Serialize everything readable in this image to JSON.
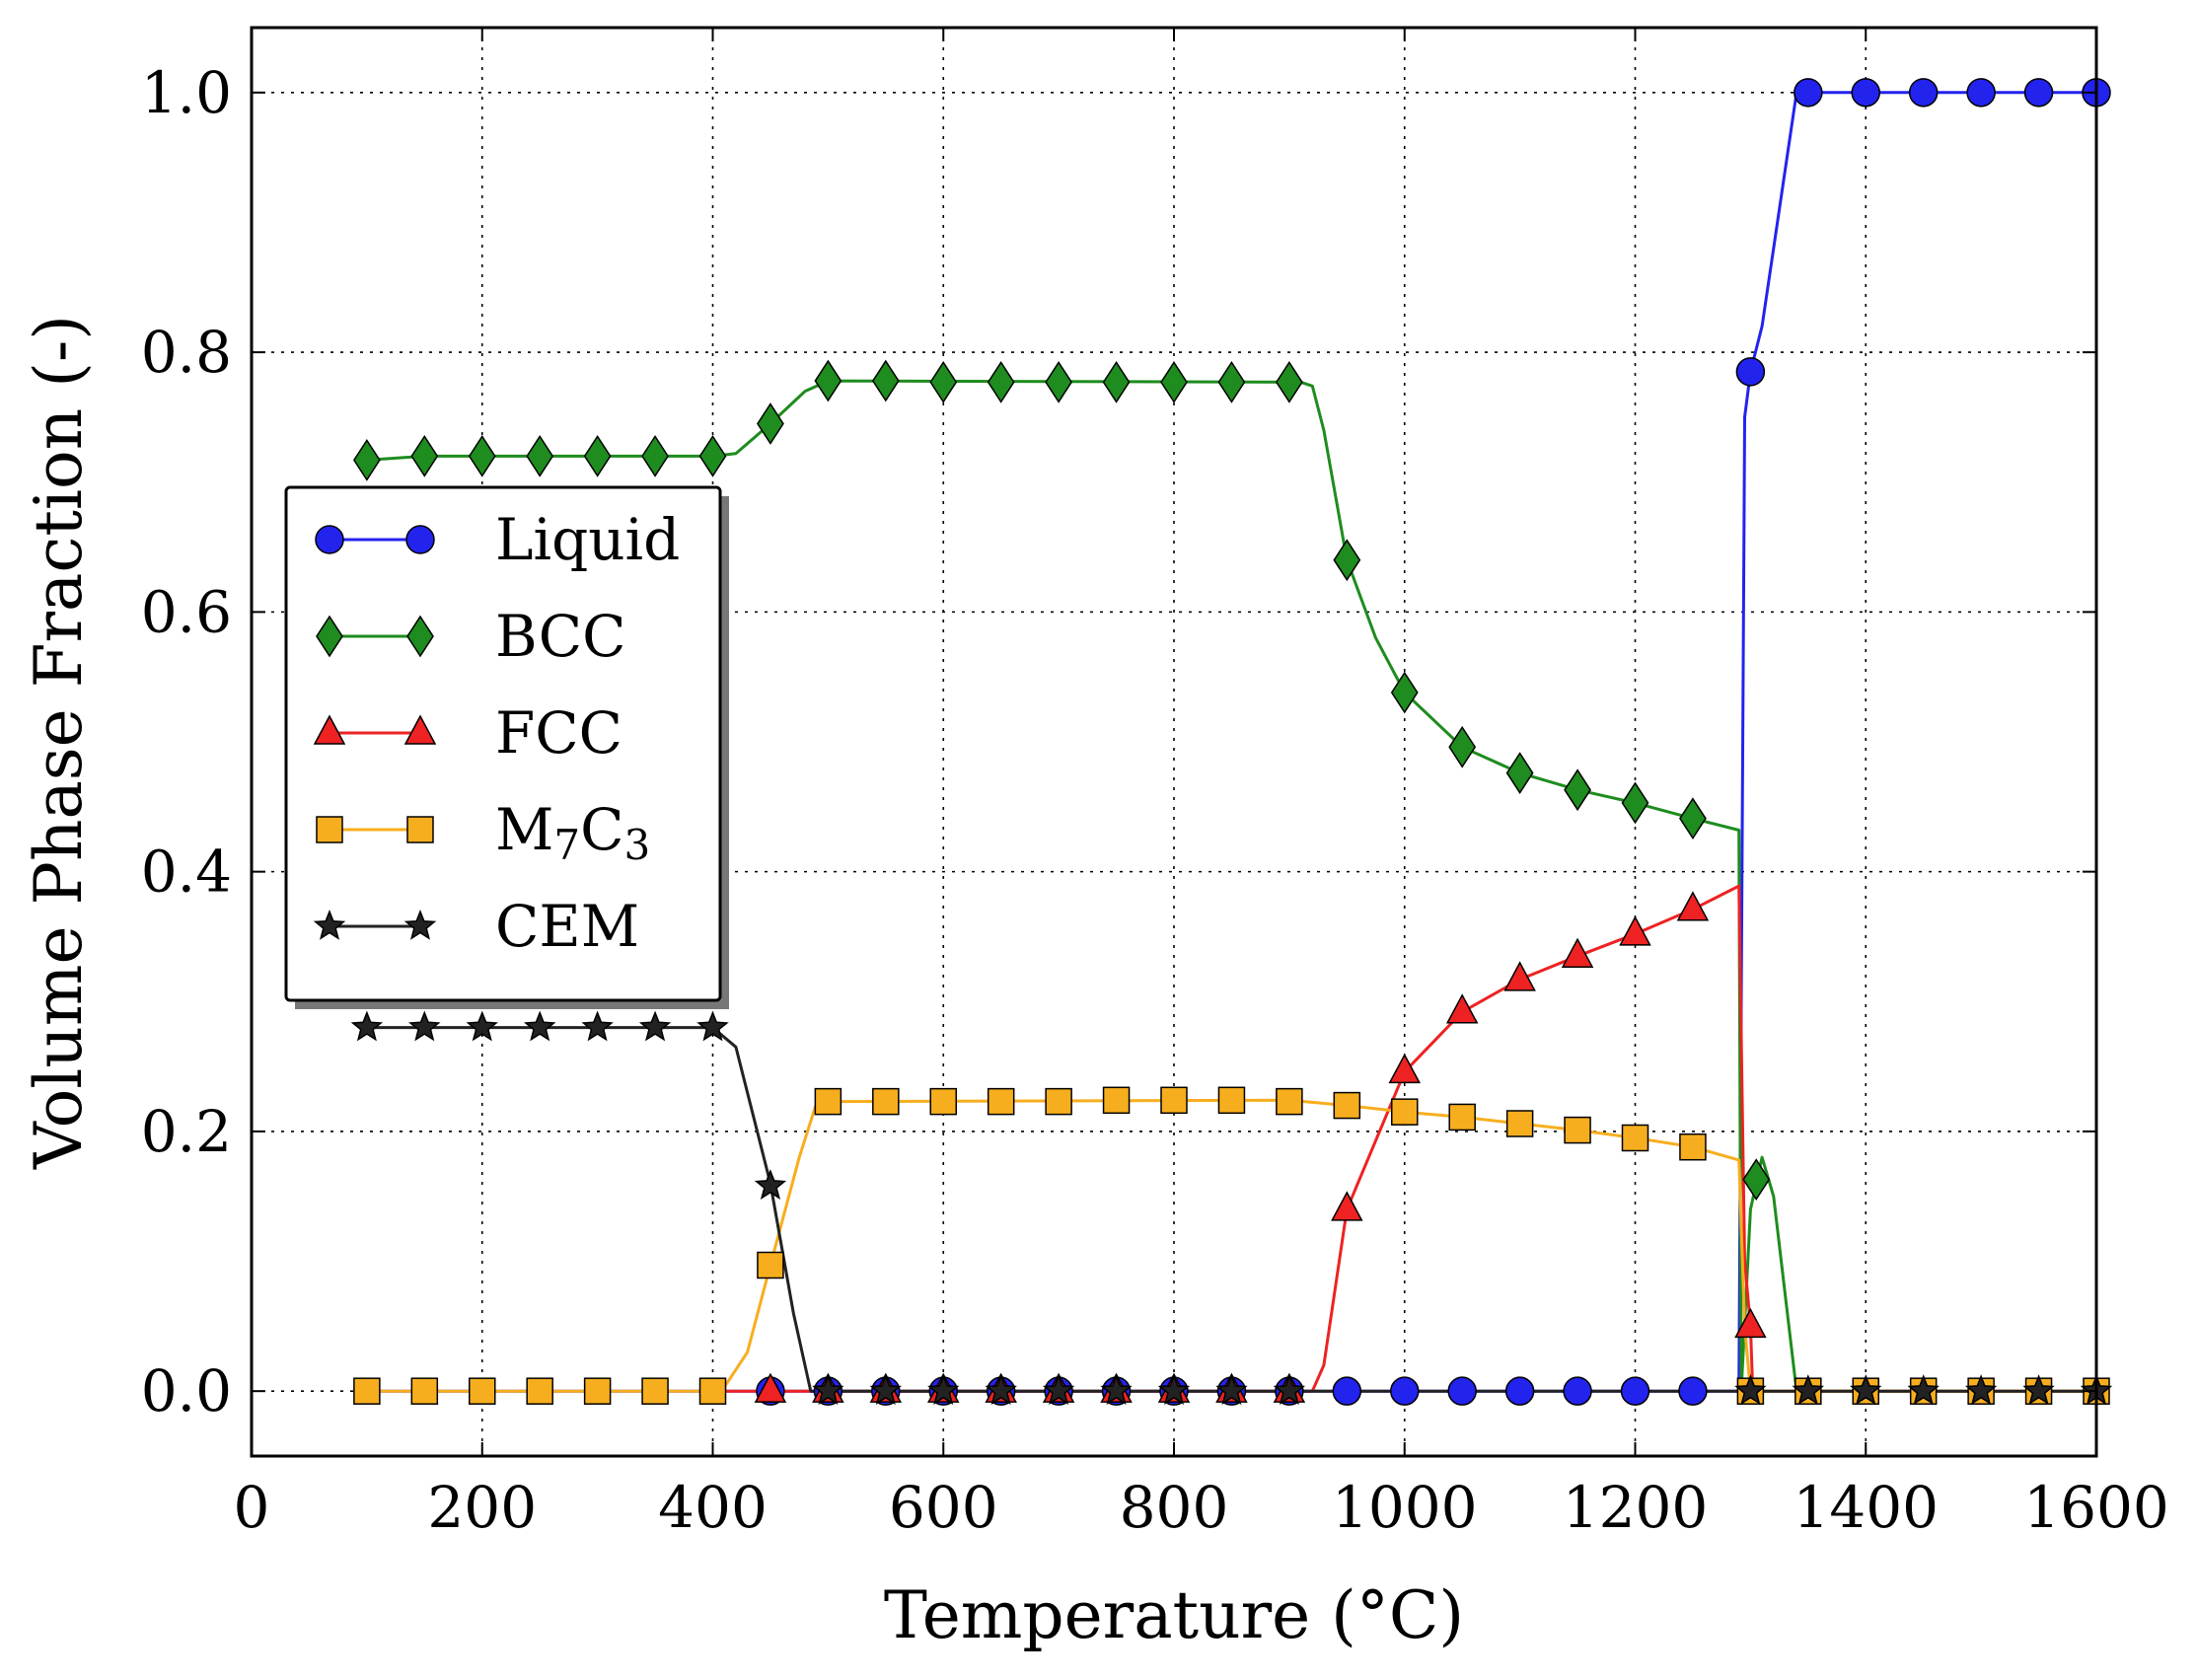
{
  "chart_data": {
    "type": "line",
    "title": "",
    "xlabel": "Temperature (°C)",
    "ylabel": "Volume Phase Fraction (-)",
    "xlim": [
      0,
      1600
    ],
    "ylim": [
      -0.05,
      1.05
    ],
    "xticks": [
      0,
      200,
      400,
      600,
      800,
      1000,
      1200,
      1400,
      1600
    ],
    "yticks": [
      0.0,
      0.2,
      0.4,
      0.6,
      0.8,
      1.0
    ],
    "xtick_labels": [
      "0",
      "200",
      "400",
      "600",
      "800",
      "1000",
      "1200",
      "1400",
      "1600"
    ],
    "ytick_labels": [
      "0.0",
      "0.2",
      "0.4",
      "0.6",
      "0.8",
      "1.0"
    ],
    "grid": true,
    "legend_position": "center-left",
    "series": [
      {
        "name": "Liquid",
        "color": "#2323ee",
        "marker": "circle",
        "line": [
          [
            100,
            0
          ],
          [
            1290,
            0
          ],
          [
            1295,
            0.75
          ],
          [
            1300,
            0.785
          ],
          [
            1310,
            0.82
          ],
          [
            1320,
            0.88
          ],
          [
            1340,
            1.0
          ],
          [
            1600,
            1.0
          ]
        ],
        "markers": [
          [
            450,
            0
          ],
          [
            500,
            0
          ],
          [
            550,
            0
          ],
          [
            600,
            0
          ],
          [
            650,
            0
          ],
          [
            700,
            0
          ],
          [
            750,
            0
          ],
          [
            800,
            0
          ],
          [
            850,
            0
          ],
          [
            900,
            0
          ],
          [
            950,
            0
          ],
          [
            1000,
            0
          ],
          [
            1050,
            0
          ],
          [
            1100,
            0
          ],
          [
            1150,
            0
          ],
          [
            1200,
            0
          ],
          [
            1250,
            0
          ],
          [
            1300,
            0.785
          ],
          [
            1350,
            1.0
          ],
          [
            1400,
            1.0
          ],
          [
            1450,
            1.0
          ],
          [
            1500,
            1.0
          ],
          [
            1550,
            1.0
          ],
          [
            1600,
            1.0
          ]
        ]
      },
      {
        "name": "BCC",
        "color": "#1e8c1e",
        "marker": "diamond",
        "line": [
          [
            100,
            0.717
          ],
          [
            150,
            0.72
          ],
          [
            400,
            0.72
          ],
          [
            420,
            0.722
          ],
          [
            450,
            0.745
          ],
          [
            480,
            0.77
          ],
          [
            500,
            0.778
          ],
          [
            910,
            0.777
          ],
          [
            920,
            0.774
          ],
          [
            930,
            0.74
          ],
          [
            950,
            0.64
          ],
          [
            975,
            0.58
          ],
          [
            1000,
            0.538
          ],
          [
            1050,
            0.496
          ],
          [
            1100,
            0.476
          ],
          [
            1150,
            0.463
          ],
          [
            1200,
            0.453
          ],
          [
            1250,
            0.441
          ],
          [
            1290,
            0.432
          ],
          [
            1292,
            0.0
          ],
          [
            1300,
            0.14
          ],
          [
            1310,
            0.18
          ],
          [
            1320,
            0.15
          ],
          [
            1340,
            0.0
          ],
          [
            1600,
            0.0
          ]
        ],
        "markers": [
          [
            100,
            0.717
          ],
          [
            150,
            0.72
          ],
          [
            200,
            0.72
          ],
          [
            250,
            0.72
          ],
          [
            300,
            0.72
          ],
          [
            350,
            0.72
          ],
          [
            400,
            0.72
          ],
          [
            450,
            0.745
          ],
          [
            500,
            0.778
          ],
          [
            550,
            0.778
          ],
          [
            600,
            0.777
          ],
          [
            650,
            0.777
          ],
          [
            700,
            0.777
          ],
          [
            750,
            0.777
          ],
          [
            800,
            0.777
          ],
          [
            850,
            0.777
          ],
          [
            900,
            0.777
          ],
          [
            950,
            0.64
          ],
          [
            1000,
            0.538
          ],
          [
            1050,
            0.496
          ],
          [
            1100,
            0.476
          ],
          [
            1150,
            0.463
          ],
          [
            1200,
            0.453
          ],
          [
            1250,
            0.441
          ],
          [
            1305,
            0.163
          ]
        ]
      },
      {
        "name": "FCC",
        "color": "#ee2222",
        "marker": "triangle",
        "line": [
          [
            400,
            0
          ],
          [
            920,
            0
          ],
          [
            930,
            0.02
          ],
          [
            950,
            0.14
          ],
          [
            1000,
            0.246
          ],
          [
            1050,
            0.292
          ],
          [
            1100,
            0.317
          ],
          [
            1150,
            0.335
          ],
          [
            1200,
            0.352
          ],
          [
            1250,
            0.371
          ],
          [
            1290,
            0.389
          ],
          [
            1295,
            0.1
          ],
          [
            1300,
            0.05
          ],
          [
            1302,
            0
          ],
          [
            1600,
            0
          ]
        ],
        "markers": [
          [
            450,
            0
          ],
          [
            500,
            0
          ],
          [
            550,
            0
          ],
          [
            600,
            0
          ],
          [
            650,
            0
          ],
          [
            700,
            0
          ],
          [
            750,
            0
          ],
          [
            800,
            0
          ],
          [
            850,
            0
          ],
          [
            900,
            0
          ],
          [
            950,
            0.14
          ],
          [
            1000,
            0.246
          ],
          [
            1050,
            0.292
          ],
          [
            1100,
            0.317
          ],
          [
            1150,
            0.335
          ],
          [
            1200,
            0.352
          ],
          [
            1250,
            0.371
          ],
          [
            1300,
            0.05
          ]
        ]
      },
      {
        "name": "M7C3",
        "name_base": "M",
        "name_sub1": "7",
        "name_mid": "C",
        "name_sub2": "3",
        "color": "#f7ae1e",
        "marker": "square",
        "line": [
          [
            100,
            0
          ],
          [
            400,
            0
          ],
          [
            410,
            0.003
          ],
          [
            430,
            0.03
          ],
          [
            450,
            0.097
          ],
          [
            475,
            0.18
          ],
          [
            490,
            0.222
          ],
          [
            500,
            0.223
          ],
          [
            900,
            0.224
          ],
          [
            950,
            0.22
          ],
          [
            1000,
            0.215
          ],
          [
            1050,
            0.211
          ],
          [
            1100,
            0.206
          ],
          [
            1150,
            0.201
          ],
          [
            1200,
            0.195
          ],
          [
            1250,
            0.188
          ],
          [
            1290,
            0.178
          ],
          [
            1295,
            0.05
          ],
          [
            1300,
            0
          ],
          [
            1600,
            0
          ]
        ],
        "markers": [
          [
            100,
            0
          ],
          [
            150,
            0
          ],
          [
            200,
            0
          ],
          [
            250,
            0
          ],
          [
            300,
            0
          ],
          [
            350,
            0
          ],
          [
            400,
            0
          ],
          [
            450,
            0.097
          ],
          [
            500,
            0.223
          ],
          [
            550,
            0.223
          ],
          [
            600,
            0.223
          ],
          [
            650,
            0.223
          ],
          [
            700,
            0.223
          ],
          [
            750,
            0.224
          ],
          [
            800,
            0.224
          ],
          [
            850,
            0.224
          ],
          [
            900,
            0.223
          ],
          [
            950,
            0.22
          ],
          [
            1000,
            0.215
          ],
          [
            1050,
            0.211
          ],
          [
            1100,
            0.206
          ],
          [
            1150,
            0.201
          ],
          [
            1200,
            0.195
          ],
          [
            1250,
            0.188
          ],
          [
            1300,
            0
          ],
          [
            1350,
            0
          ],
          [
            1400,
            0
          ],
          [
            1450,
            0
          ],
          [
            1500,
            0
          ],
          [
            1550,
            0
          ],
          [
            1600,
            0
          ]
        ]
      },
      {
        "name": "CEM",
        "color": "#222222",
        "marker": "star",
        "line": [
          [
            100,
            0.28
          ],
          [
            400,
            0.28
          ],
          [
            420,
            0.265
          ],
          [
            450,
            0.16
          ],
          [
            470,
            0.06
          ],
          [
            485,
            0
          ],
          [
            1600,
            0
          ]
        ],
        "markers": [
          [
            100,
            0.28
          ],
          [
            150,
            0.28
          ],
          [
            200,
            0.28
          ],
          [
            250,
            0.28
          ],
          [
            300,
            0.28
          ],
          [
            350,
            0.28
          ],
          [
            400,
            0.28
          ],
          [
            450,
            0.158
          ],
          [
            500,
            0
          ],
          [
            550,
            0
          ],
          [
            600,
            0
          ],
          [
            650,
            0
          ],
          [
            700,
            0
          ],
          [
            750,
            0
          ],
          [
            800,
            0
          ],
          [
            850,
            0
          ],
          [
            900,
            0
          ],
          [
            1300,
            0
          ],
          [
            1350,
            0
          ],
          [
            1400,
            0
          ],
          [
            1450,
            0
          ],
          [
            1500,
            0
          ],
          [
            1550,
            0
          ],
          [
            1600,
            0
          ]
        ]
      }
    ]
  }
}
